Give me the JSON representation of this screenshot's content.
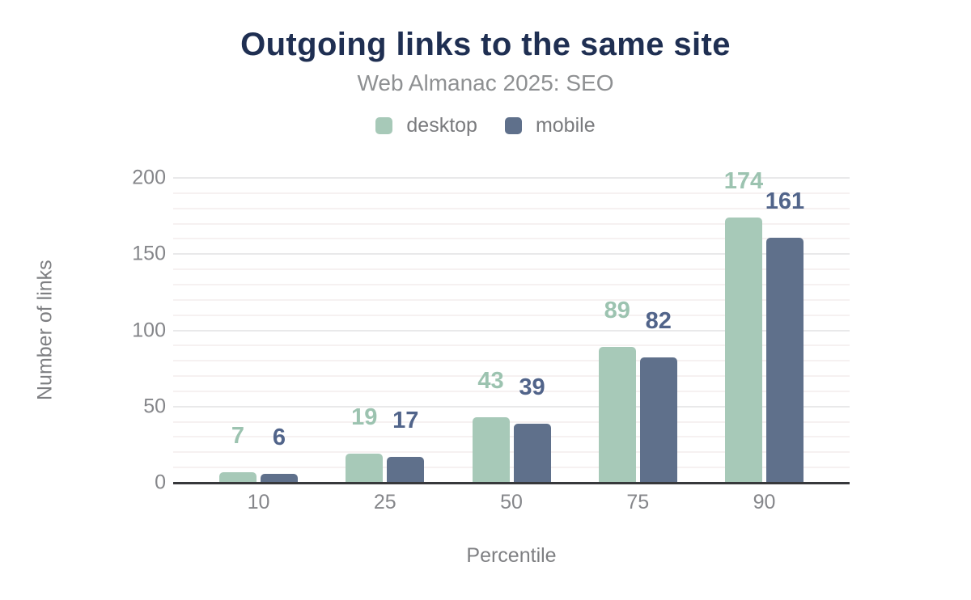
{
  "theme": {
    "background": "#ffffff",
    "title-color": "#1f2f52",
    "subtitle-color": "#8e9092",
    "legend-text-color": "#7a7b7e",
    "tick-text-color": "#85868a",
    "axis-title-color": "#7e7f82",
    "axis-line-color": "#37383b",
    "grid-major-color": "#e9e9ea",
    "grid-minor-color": "#f6f1f1"
  },
  "chart_data": {
    "type": "bar",
    "title": "Outgoing links to the same site",
    "subtitle": "Web Almanac 2025: SEO",
    "xlabel": "Percentile",
    "ylabel": "Number of links",
    "categories": [
      "10",
      "25",
      "50",
      "75",
      "90"
    ],
    "series": [
      {
        "name": "desktop",
        "color": "#a7c9b8",
        "label_color": "#9cc3b0",
        "values": [
          7,
          19,
          43,
          89,
          174
        ]
      },
      {
        "name": "mobile",
        "color": "#5f708b",
        "label_color": "#51648a",
        "values": [
          6,
          17,
          39,
          82,
          161
        ]
      }
    ],
    "ylim": [
      0,
      200
    ],
    "yticks": [
      0,
      50,
      100,
      150,
      200
    ],
    "minor_grid_step": 10,
    "major_grid_step": 50,
    "grid": true,
    "legend_position": "top"
  }
}
